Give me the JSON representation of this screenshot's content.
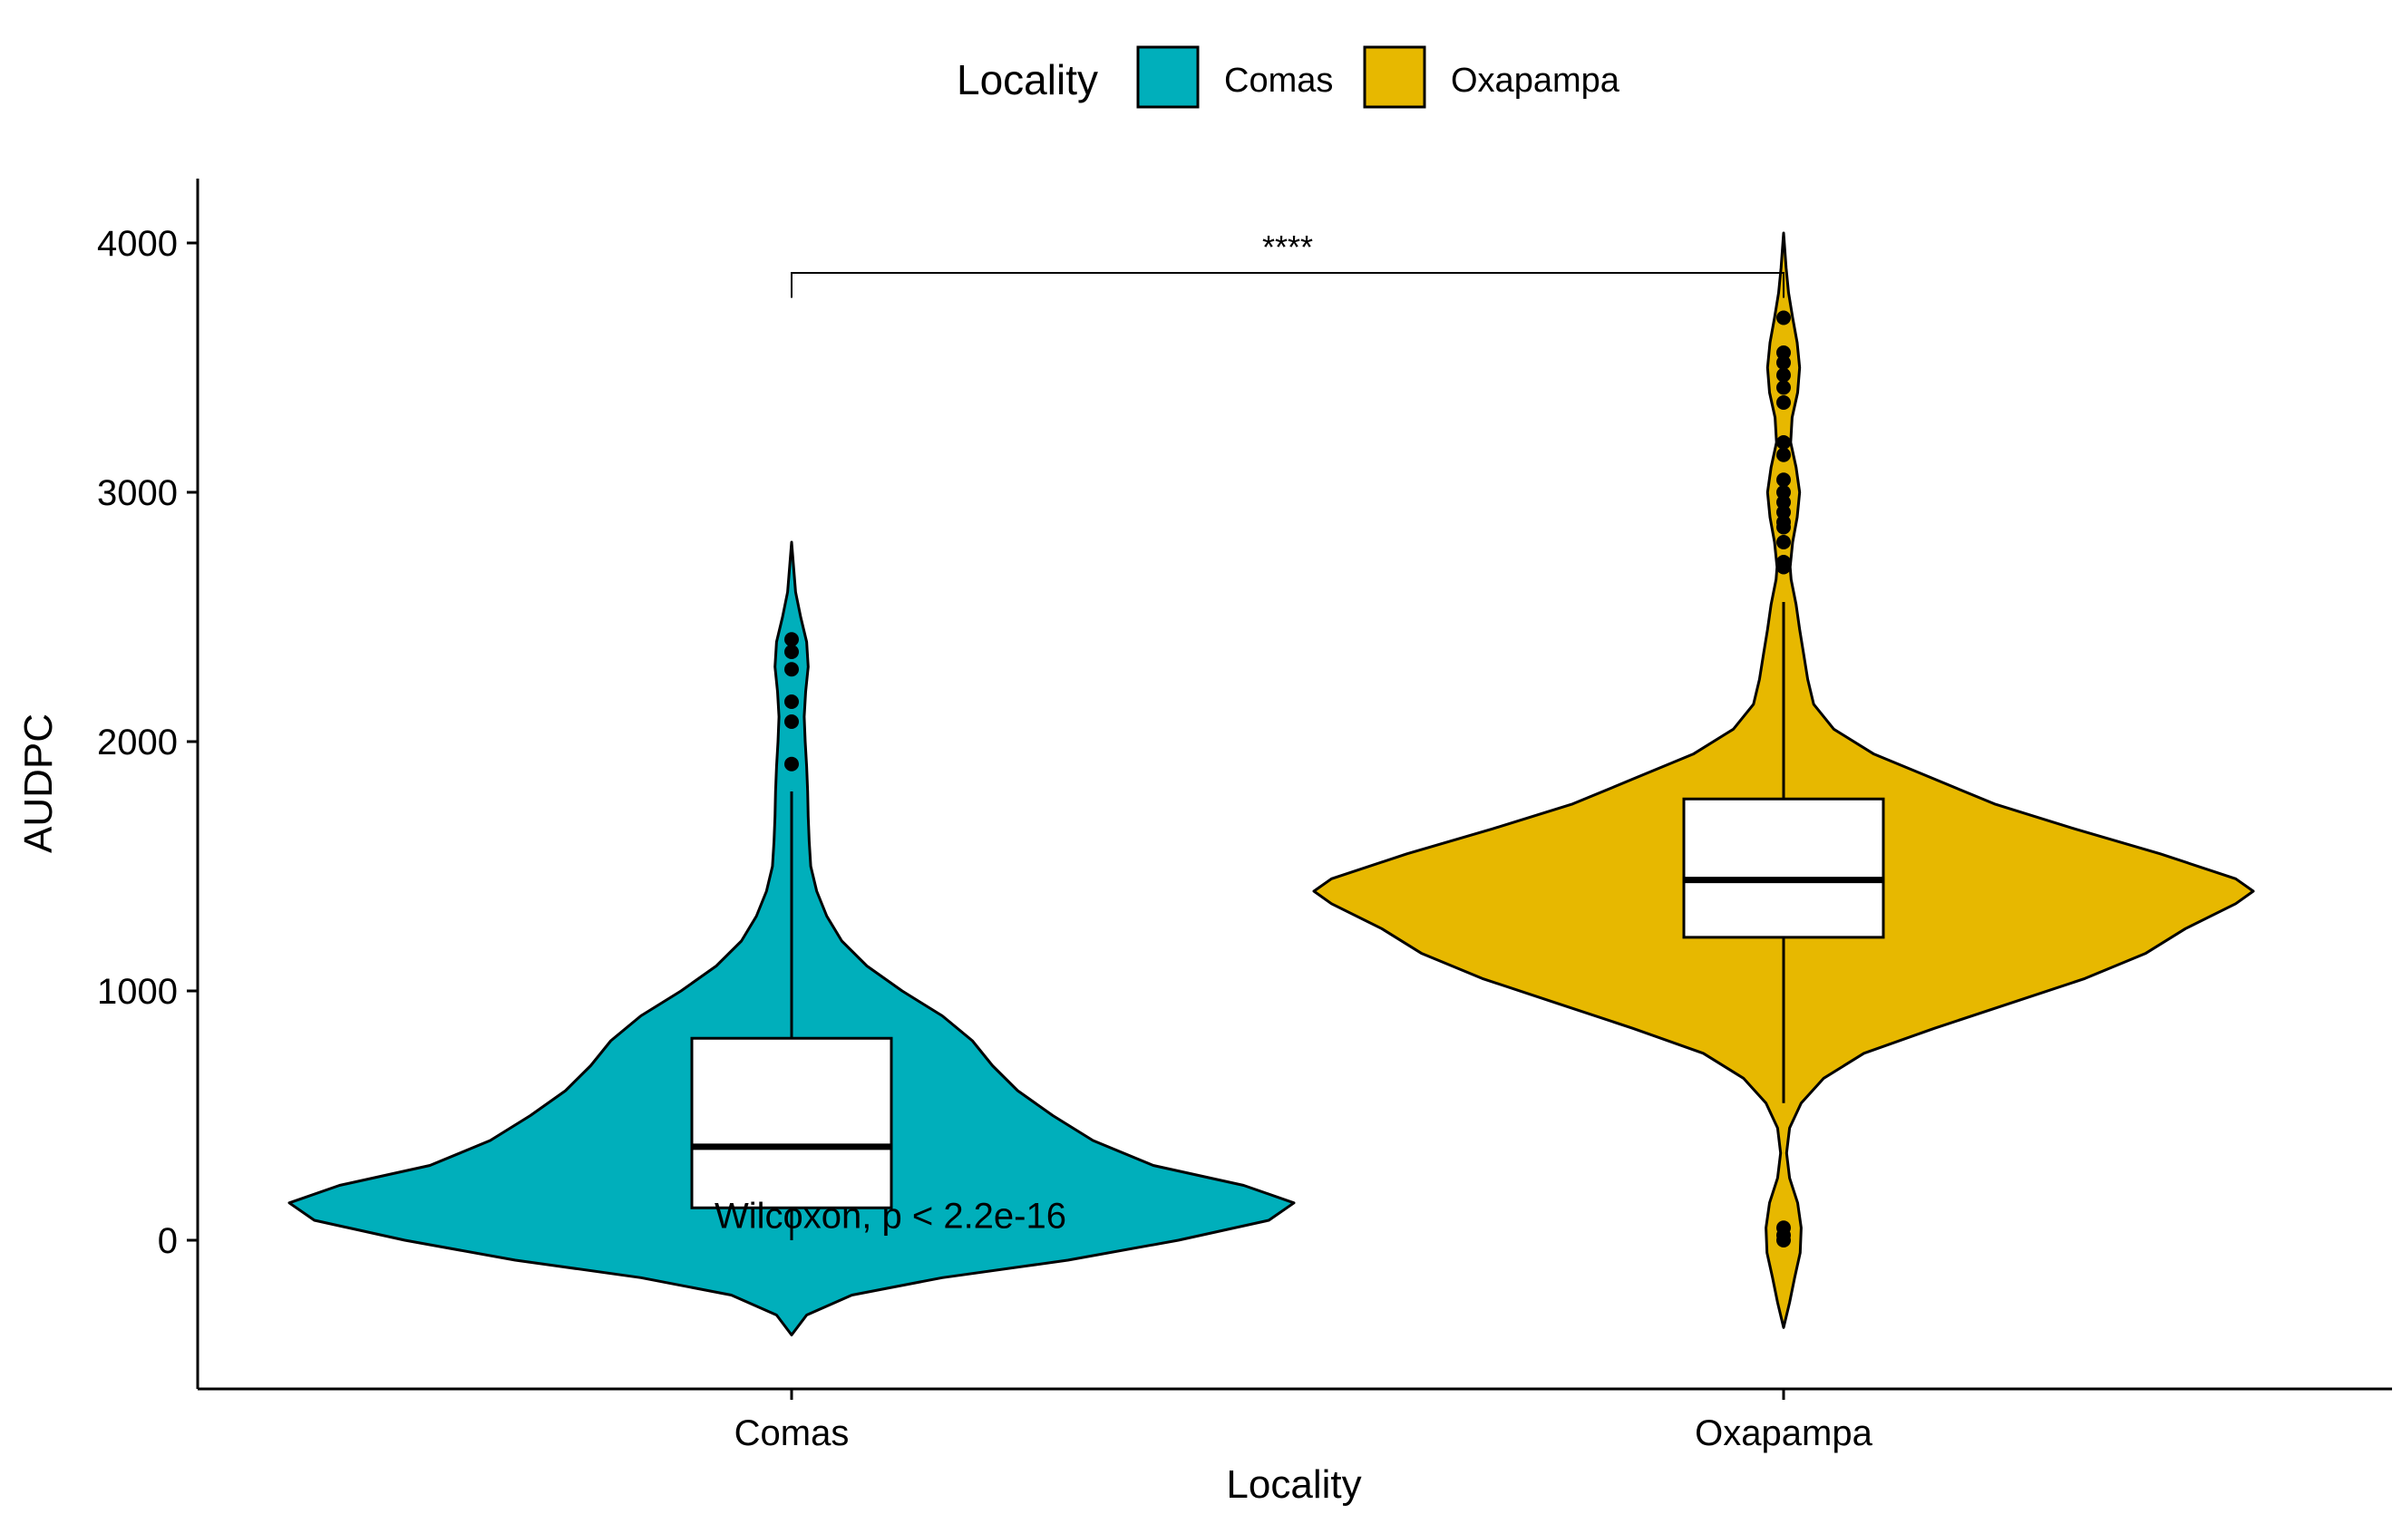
{
  "colors": {
    "Comas": "#00AFBB",
    "Oxapampa": "#E7B800",
    "box_fill": "#FFFFFF",
    "outline": "#000000",
    "background": "#FFFFFF"
  },
  "chart_data": {
    "type": "violin",
    "title": "",
    "xlabel": "Locality",
    "ylabel": "AUDPC",
    "ylim": [
      -600,
      4270
    ],
    "yticks": [
      0,
      1000,
      2000,
      3000,
      4000
    ],
    "categories": [
      "Comas",
      "Oxapampa"
    ],
    "grid": false,
    "legend": {
      "title": "Locality",
      "position": "top",
      "entries": [
        "Comas",
        "Oxapampa"
      ]
    },
    "series": [
      {
        "name": "Comas",
        "color": "#00AFBB",
        "violin_range": [
          -380,
          2800
        ],
        "box": {
          "q1": 130,
          "median": 375,
          "q3": 810,
          "whisker_low": 0,
          "whisker_high": 1800
        },
        "outliers": [
          1910,
          2080,
          2160,
          2290,
          2360,
          2410
        ],
        "density_profile": [
          [
            -380,
            0.0
          ],
          [
            -300,
            0.03
          ],
          [
            -220,
            0.12
          ],
          [
            -150,
            0.3
          ],
          [
            -80,
            0.55
          ],
          [
            0,
            0.77
          ],
          [
            80,
            0.95
          ],
          [
            150,
            1.0
          ],
          [
            220,
            0.9
          ],
          [
            300,
            0.72
          ],
          [
            400,
            0.6
          ],
          [
            500,
            0.52
          ],
          [
            600,
            0.45
          ],
          [
            700,
            0.4
          ],
          [
            800,
            0.36
          ],
          [
            900,
            0.3
          ],
          [
            1000,
            0.22
          ],
          [
            1100,
            0.15
          ],
          [
            1200,
            0.1
          ],
          [
            1300,
            0.07
          ],
          [
            1400,
            0.05
          ],
          [
            1500,
            0.038
          ],
          [
            1600,
            0.035
          ],
          [
            1700,
            0.033
          ],
          [
            1800,
            0.032
          ],
          [
            1900,
            0.03
          ],
          [
            2000,
            0.027
          ],
          [
            2100,
            0.025
          ],
          [
            2200,
            0.028
          ],
          [
            2300,
            0.033
          ],
          [
            2400,
            0.03
          ],
          [
            2500,
            0.018
          ],
          [
            2600,
            0.008
          ],
          [
            2700,
            0.004
          ],
          [
            2800,
            0.0
          ]
        ]
      },
      {
        "name": "Oxapampa",
        "color": "#E7B800",
        "violin_range": [
          -350,
          4040
        ],
        "box": {
          "q1": 1215,
          "median": 1445,
          "q3": 1770,
          "whisker_low": 550,
          "whisker_high": 2560
        },
        "outliers": [
          0,
          20,
          50,
          2700,
          2720,
          2800,
          2860,
          2880,
          2920,
          2960,
          3000,
          3050,
          3150,
          3200,
          3360,
          3420,
          3470,
          3520,
          3560,
          3700
        ],
        "density_profile": [
          [
            -350,
            0.0
          ],
          [
            -250,
            0.012
          ],
          [
            -150,
            0.022
          ],
          [
            -50,
            0.033
          ],
          [
            50,
            0.035
          ],
          [
            150,
            0.028
          ],
          [
            250,
            0.012
          ],
          [
            350,
            0.006
          ],
          [
            450,
            0.012
          ],
          [
            550,
            0.035
          ],
          [
            650,
            0.08
          ],
          [
            750,
            0.16
          ],
          [
            850,
            0.3
          ],
          [
            950,
            0.45
          ],
          [
            1050,
            0.6
          ],
          [
            1150,
            0.72
          ],
          [
            1250,
            0.8
          ],
          [
            1350,
            0.9
          ],
          [
            1400,
            0.935
          ],
          [
            1450,
            0.9
          ],
          [
            1550,
            0.75
          ],
          [
            1650,
            0.58
          ],
          [
            1750,
            0.42
          ],
          [
            1850,
            0.3
          ],
          [
            1950,
            0.18
          ],
          [
            2050,
            0.1
          ],
          [
            2150,
            0.06
          ],
          [
            2250,
            0.048
          ],
          [
            2350,
            0.04
          ],
          [
            2450,
            0.032
          ],
          [
            2550,
            0.025
          ],
          [
            2650,
            0.015
          ],
          [
            2700,
            0.013
          ],
          [
            2800,
            0.018
          ],
          [
            2900,
            0.027
          ],
          [
            3000,
            0.032
          ],
          [
            3100,
            0.025
          ],
          [
            3200,
            0.014
          ],
          [
            3300,
            0.017
          ],
          [
            3400,
            0.028
          ],
          [
            3500,
            0.032
          ],
          [
            3600,
            0.027
          ],
          [
            3700,
            0.018
          ],
          [
            3800,
            0.01
          ],
          [
            3900,
            0.005
          ],
          [
            4040,
            0.0
          ]
        ]
      }
    ],
    "annotations": {
      "test_label": "Wilcoxon, p < 2.2e-16",
      "test_label_at": 100,
      "significance": "****",
      "bracket_y": 3880,
      "bracket_tip_y": 3780
    }
  }
}
